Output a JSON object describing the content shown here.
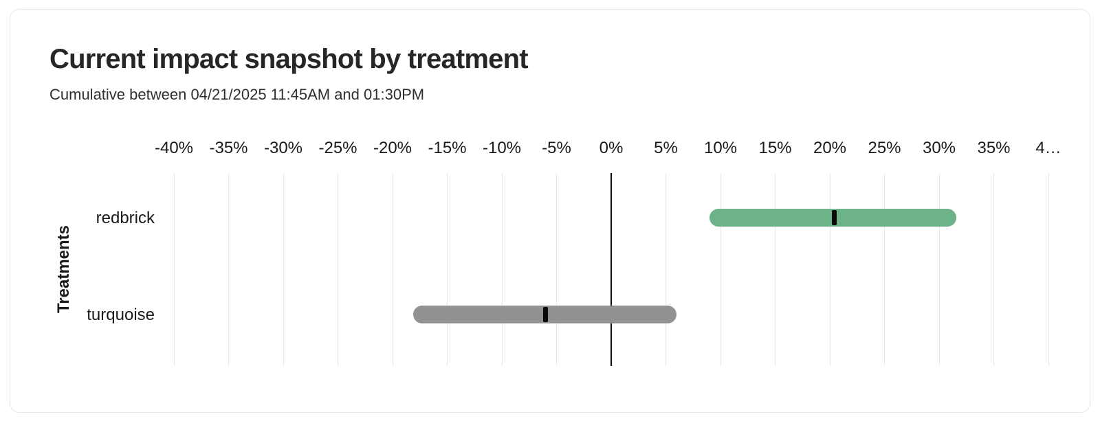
{
  "card": {
    "title": "Current impact snapshot by treatment",
    "subtitle": "Cumulative between 04/21/2025 11:45AM and 01:30PM"
  },
  "chart_data": {
    "type": "bar",
    "variant": "confidence-interval-range-bars-with-point-marker",
    "orientation": "horizontal",
    "title": "Current impact snapshot by treatment",
    "subtitle": "Cumulative between 04/21/2025 11:45AM and 01:30PM",
    "xlabel": "",
    "ylabel": "Treatments",
    "x_unit": "percent",
    "xlim": [
      -40,
      40
    ],
    "x_ticks": [
      -40,
      -35,
      -30,
      -25,
      -20,
      -15,
      -10,
      -5,
      0,
      5,
      10,
      15,
      20,
      25,
      30,
      35,
      40
    ],
    "x_tick_labels": [
      "-40%",
      "-35%",
      "-30%",
      "-25%",
      "-20%",
      "-15%",
      "-10%",
      "-5%",
      "0%",
      "5%",
      "10%",
      "15%",
      "20%",
      "25%",
      "30%",
      "35%",
      "4…"
    ],
    "grid": true,
    "zero_line": true,
    "legend": "none",
    "categories": [
      "redbrick",
      "turquoise"
    ],
    "series": [
      {
        "name": "redbrick",
        "point": 20.4,
        "ci_low": 9.0,
        "ci_high": 31.6,
        "bar_color": "#6db389"
      },
      {
        "name": "turquoise",
        "point": -6.0,
        "ci_low": -18.1,
        "ci_high": 6.0,
        "bar_color": "#929292"
      }
    ],
    "marker_color": "#0a0a0a",
    "colors": {
      "gridline": "#e9e9e9",
      "zero_line": "#0a0a0a",
      "text": "#1a1a1a"
    }
  }
}
